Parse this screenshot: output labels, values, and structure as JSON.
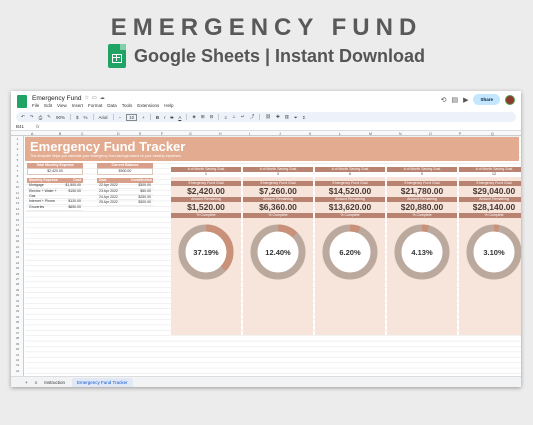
{
  "banner": {
    "title": "EMERGENCY FUND",
    "subtitle": "Google Sheets | Instant Download"
  },
  "window": {
    "doc_title": "Emergency Fund",
    "menus": [
      "File",
      "Edit",
      "View",
      "Insert",
      "Format",
      "Data",
      "Tools",
      "Extensions",
      "Help"
    ],
    "share_label": "Share",
    "toolbar": {
      "zoom": "90%",
      "font": "Arial",
      "font_size": "10"
    },
    "cell_ref": "B41",
    "fx": "fx"
  },
  "columns": [
    "A",
    "B",
    "C",
    "D",
    "E",
    "F",
    "G",
    "H",
    "I",
    "J",
    "K",
    "L",
    "M",
    "N",
    "O",
    "P",
    "Q"
  ],
  "sheet": {
    "title": "Emergency Fund Tracker",
    "description": "This template helps you calculate your emergency fund savings based on your monthly expenses.",
    "total_expense": {
      "label": "Total Monthly Expense",
      "value": "$2,420.00"
    },
    "current_balance": {
      "label": "Current Balance",
      "value": "$900.00"
    },
    "expenses": {
      "headers": [
        "Monthly Expense",
        "Cost"
      ],
      "rows": [
        [
          "Mortgage",
          "$1,500.00"
        ],
        [
          "Electric + Water + Gas",
          "$150.00"
        ],
        [
          "Internet + Phone",
          "$120.00"
        ],
        [
          "Groceries",
          "$650.00"
        ]
      ]
    },
    "contributions": {
      "headers": [
        "Date",
        "Contribution"
      ],
      "rows": [
        [
          "22 Apr 2022",
          "$300.00"
        ],
        [
          "23 Apr 2022",
          "$50.00"
        ],
        [
          "24 Apr 2022",
          "$250.00"
        ],
        [
          "25 Apr 2022",
          "$300.00"
        ]
      ]
    },
    "goals": [
      {
        "months_label": "# of Month Saving Goal",
        "months": "1",
        "goal_label": "Emergency Fund Goal",
        "goal": "$2,420.00",
        "remaining_label": "Amount Remaining",
        "remaining": "$1,520.00",
        "complete_label": "% Complete",
        "percent": "37.19%",
        "fraction": 0.3719
      },
      {
        "months_label": "# of Month Saving Goal",
        "months": "3",
        "goal_label": "Emergency Fund Goal",
        "goal": "$7,260.00",
        "remaining_label": "Amount Remaining",
        "remaining": "$6,360.00",
        "complete_label": "% Complete",
        "percent": "12.40%",
        "fraction": 0.124
      },
      {
        "months_label": "# of Month Saving Goal",
        "months": "6",
        "goal_label": "Emergency Fund Goal",
        "goal": "$14,520.00",
        "remaining_label": "Amount Remaining",
        "remaining": "$13,620.00",
        "complete_label": "% Complete",
        "percent": "6.20%",
        "fraction": 0.062
      },
      {
        "months_label": "# of Month Saving Goal",
        "months": "9",
        "goal_label": "Emergency Fund Goal",
        "goal": "$21,780.00",
        "remaining_label": "Amount Remaining",
        "remaining": "$20,880.00",
        "complete_label": "% Complete",
        "percent": "4.13%",
        "fraction": 0.0413
      },
      {
        "months_label": "# of Month Saving Goal",
        "months": "12",
        "goal_label": "Emergency Fund Goal",
        "goal": "$29,040.00",
        "remaining_label": "Amount Remaining",
        "remaining": "$28,140.00",
        "complete_label": "% Complete",
        "percent": "3.10%",
        "fraction": 0.031
      }
    ]
  },
  "tabs": {
    "instruction": "Instruction",
    "tracker": "Emergency Fund Tracker"
  },
  "colors": {
    "accent": "#d8a08b",
    "ring_fill": "#c9917a",
    "ring_track": "#bba99e"
  }
}
